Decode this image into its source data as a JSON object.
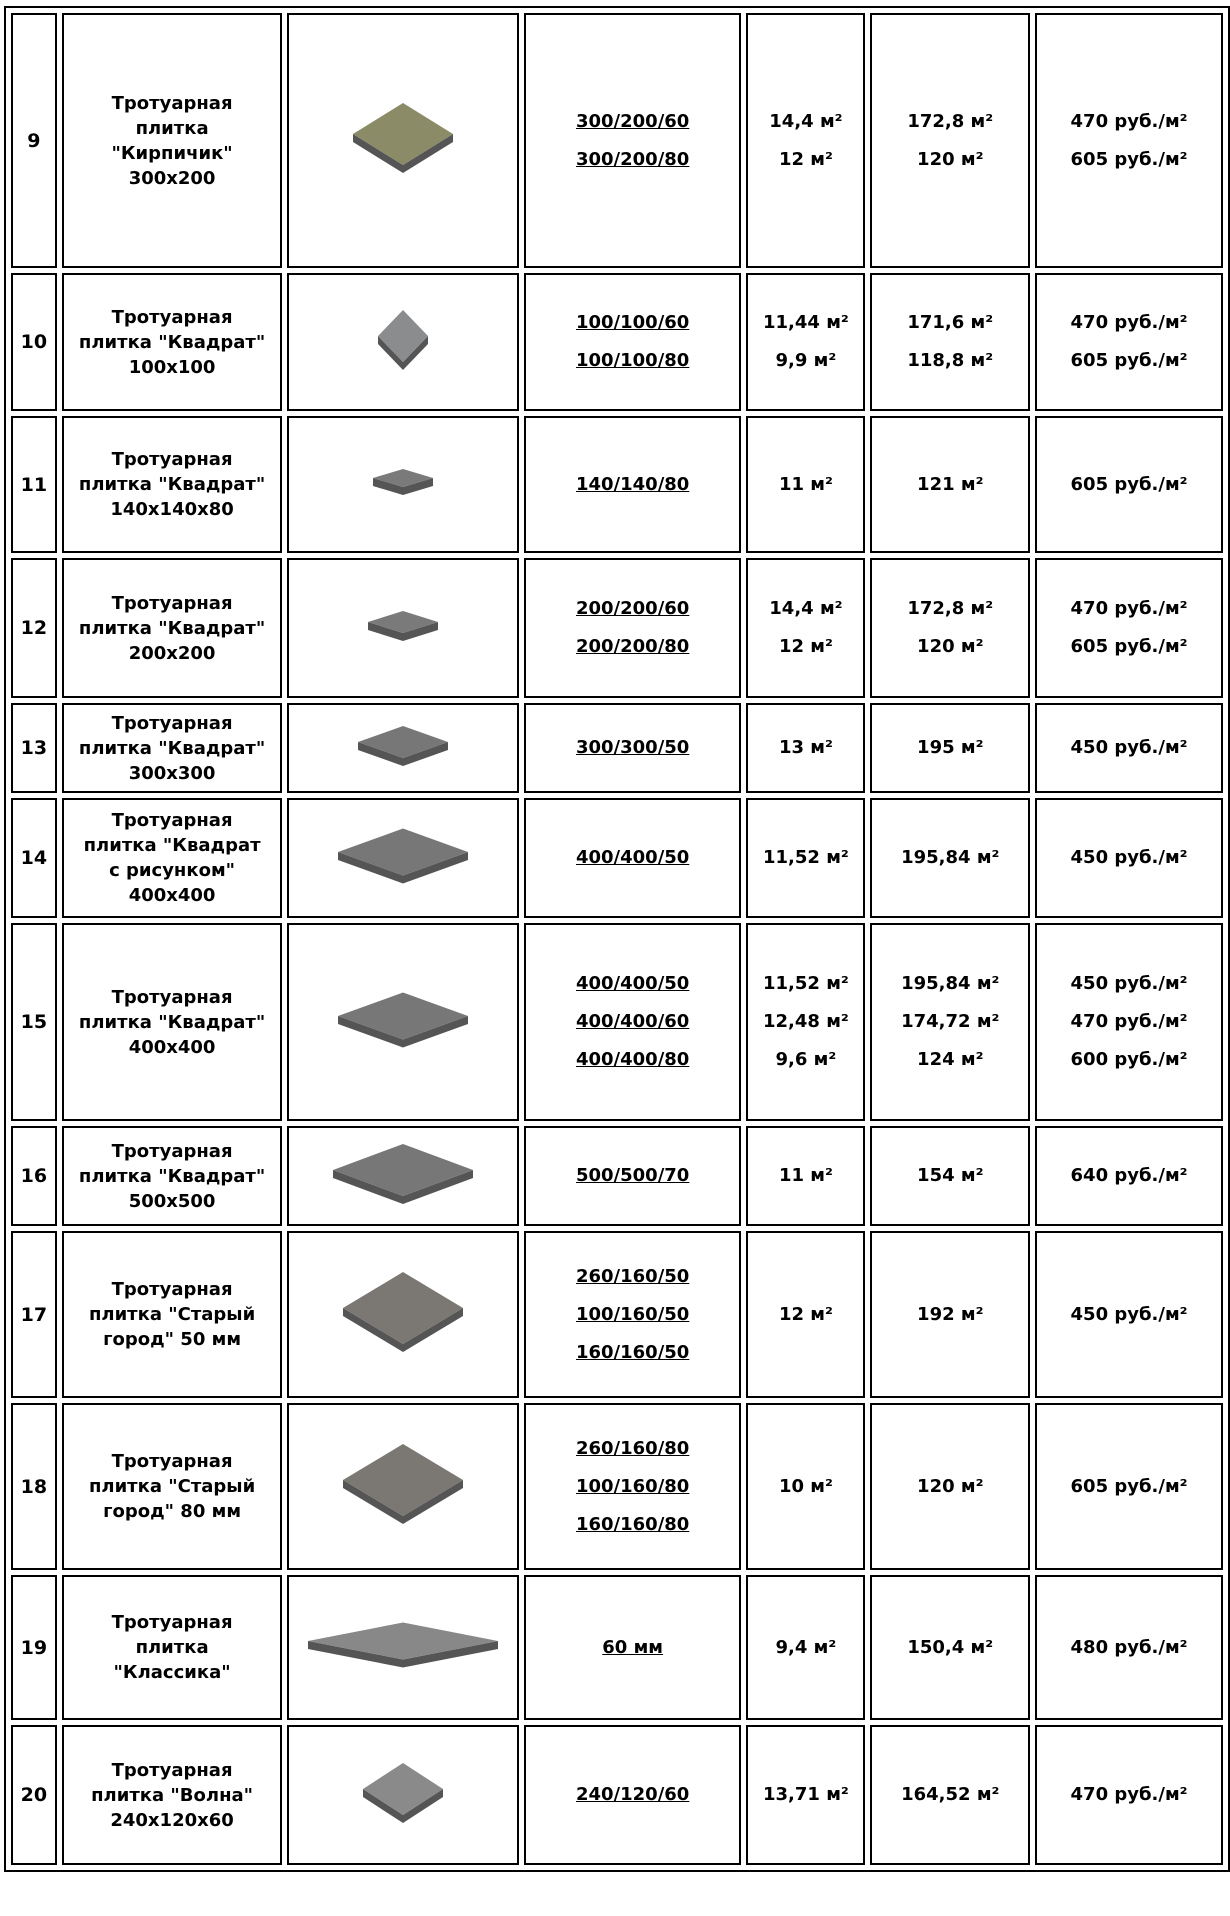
{
  "table": {
    "rows": [
      {
        "num": "9",
        "name": [
          "Тротуарная",
          "плитка",
          "\"Кирпичик\"",
          "300х200"
        ],
        "sizes": [
          "300/200/60",
          "300/200/80"
        ],
        "areas": [
          "14,4 м²",
          "12 м²"
        ],
        "volumes": [
          "172,8 м²",
          "120 м²"
        ],
        "prices": [
          "470 руб./м²",
          "605 руб./м²"
        ]
      },
      {
        "num": "10",
        "name": [
          "Тротуарная",
          "плитка \"Квадрат\"",
          "100х100"
        ],
        "sizes": [
          "100/100/60",
          "100/100/80"
        ],
        "areas": [
          "11,44 м²",
          "9,9 м²"
        ],
        "volumes": [
          "171,6 м²",
          "118,8 м²"
        ],
        "prices": [
          "470 руб./м²",
          "605 руб./м²"
        ]
      },
      {
        "num": "11",
        "name": [
          "Тротуарная",
          "плитка \"Квадрат\"",
          "140х140х80"
        ],
        "sizes": [
          "140/140/80"
        ],
        "areas": [
          "11 м²"
        ],
        "volumes": [
          "121 м²"
        ],
        "prices": [
          "605 руб./м²"
        ]
      },
      {
        "num": "12",
        "name": [
          "Тротуарная",
          "плитка \"Квадрат\"",
          "200х200"
        ],
        "sizes": [
          "200/200/60",
          "200/200/80"
        ],
        "areas": [
          "14,4 м²",
          "12 м²"
        ],
        "volumes": [
          "172,8 м²",
          "120 м²"
        ],
        "prices": [
          "470 руб./м²",
          "605 руб./м²"
        ]
      },
      {
        "num": "13",
        "name": [
          "Тротуарная",
          "плитка \"Квадрат\"",
          "300х300"
        ],
        "sizes": [
          "300/300/50"
        ],
        "areas": [
          "13 м²"
        ],
        "volumes": [
          "195 м²"
        ],
        "prices": [
          "450 руб./м²"
        ]
      },
      {
        "num": "14",
        "name": [
          "Тротуарная",
          "плитка \"Квадрат",
          "с рисунком\"",
          "400х400"
        ],
        "sizes": [
          "400/400/50"
        ],
        "areas": [
          "11,52 м²"
        ],
        "volumes": [
          "195,84 м²"
        ],
        "prices": [
          "450 руб./м²"
        ]
      },
      {
        "num": "15",
        "name": [
          "Тротуарная",
          "плитка \"Квадрат\"",
          "400х400"
        ],
        "sizes": [
          "400/400/50",
          "400/400/60",
          "400/400/80"
        ],
        "areas": [
          "11,52 м²",
          "12,48 м²",
          "9,6 м²"
        ],
        "volumes": [
          "195,84 м²",
          "174,72 м²",
          "124 м²"
        ],
        "prices": [
          "450 руб./м²",
          "470 руб./м²",
          "600 руб./м²"
        ]
      },
      {
        "num": "16",
        "name": [
          "Тротуарная",
          "плитка \"Квадрат\"",
          "500х500"
        ],
        "sizes": [
          "500/500/70"
        ],
        "areas": [
          "11 м²"
        ],
        "volumes": [
          "154 м²"
        ],
        "prices": [
          "640 руб./м²"
        ]
      },
      {
        "num": "17",
        "name": [
          "Тротуарная",
          "плитка \"Старый",
          "город\" 50 мм"
        ],
        "sizes": [
          "260/160/50",
          "100/160/50",
          "160/160/50"
        ],
        "areas": [
          "12 м²"
        ],
        "volumes": [
          "192 м²"
        ],
        "prices": [
          "450 руб./м²"
        ]
      },
      {
        "num": "18",
        "name": [
          "Тротуарная",
          "плитка \"Старый",
          "город\" 80 мм"
        ],
        "sizes": [
          "260/160/80",
          "100/160/80",
          "160/160/80"
        ],
        "areas": [
          "10 м²"
        ],
        "volumes": [
          "120 м²"
        ],
        "prices": [
          "605 руб./м²"
        ]
      },
      {
        "num": "19",
        "name": [
          "Тротуарная",
          "плитка",
          "\"Классика\""
        ],
        "sizes": [
          "60 мм"
        ],
        "areas": [
          "9,4 м²"
        ],
        "volumes": [
          "150,4 м²"
        ],
        "prices": [
          "480 руб./м²"
        ]
      },
      {
        "num": "20",
        "name": [
          "Тротуарная",
          "плитка \"Волна\"",
          "240х120х60"
        ],
        "sizes": [
          "240/120/60"
        ],
        "areas": [
          "13,71 м²"
        ],
        "volumes": [
          "164,52 м²"
        ],
        "prices": [
          "470 руб./м²"
        ]
      }
    ]
  }
}
